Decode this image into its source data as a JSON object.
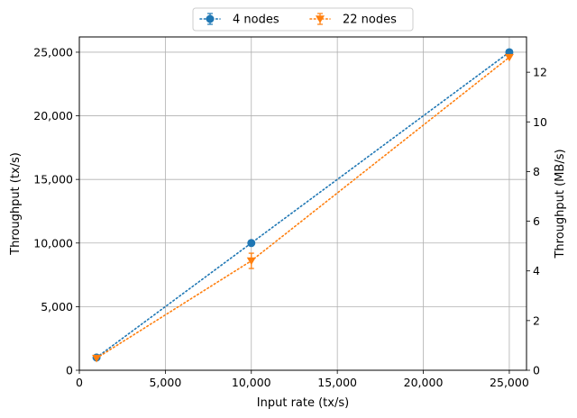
{
  "chart_data": {
    "type": "line",
    "title": "",
    "xlabel": "Input rate (tx/s)",
    "ylabel": "Throughput (tx/s)",
    "y2label": "Throughput (MB/s)",
    "xlim": [
      0,
      26000
    ],
    "ylim": [
      0,
      26200
    ],
    "y2lim": [
      0,
      13.42
    ],
    "xticks": [
      0,
      5000,
      10000,
      15000,
      20000,
      25000
    ],
    "xtick_labels": [
      "0",
      "5,000",
      "10,000",
      "15,000",
      "20,000",
      "25,000"
    ],
    "yticks": [
      0,
      5000,
      10000,
      15000,
      20000,
      25000
    ],
    "ytick_labels": [
      "0",
      "5,000",
      "10,000",
      "15,000",
      "20,000",
      "25,000"
    ],
    "y2ticks": [
      0,
      2,
      4,
      6,
      8,
      10,
      12
    ],
    "y2tick_labels": [
      "0",
      "2",
      "4",
      "6",
      "8",
      "10",
      "12"
    ],
    "grid": true,
    "legend_position": "top-center",
    "series": [
      {
        "name": "4 nodes",
        "color": "#1f77b4",
        "marker": "circle",
        "linestyle": "dotted",
        "x": [
          1000,
          10000,
          25000
        ],
        "y": [
          1000,
          10000,
          25000
        ],
        "yerr": [
          0,
          0,
          0
        ]
      },
      {
        "name": "22 nodes",
        "color": "#ff7f0e",
        "marker": "triangle-down",
        "linestyle": "dotted",
        "x": [
          1000,
          10000,
          25000
        ],
        "y": [
          950,
          8600,
          24600
        ],
        "yerr": [
          0,
          600,
          0
        ]
      }
    ]
  }
}
